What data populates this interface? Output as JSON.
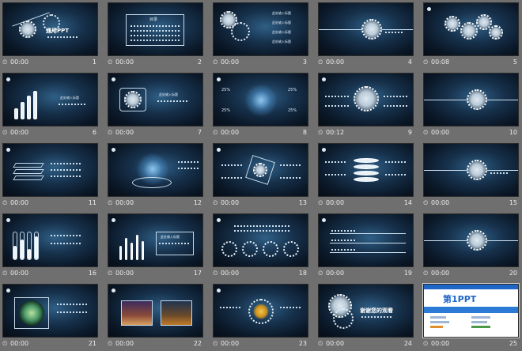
{
  "slides": [
    {
      "number": "1",
      "time": "00:00",
      "title": "通用PPT"
    },
    {
      "number": "2",
      "time": "00:00",
      "title": "目录"
    },
    {
      "number": "3",
      "time": "00:00",
      "items": [
        "此处输入标题",
        "此处输入标题",
        "此处输入标题",
        "此处输入标题"
      ]
    },
    {
      "number": "4",
      "time": "00:00"
    },
    {
      "number": "5",
      "time": "00:08"
    },
    {
      "number": "6",
      "time": "00:00",
      "heading": "此处输入标题"
    },
    {
      "number": "7",
      "time": "00:00",
      "heading": "此处输入标题"
    },
    {
      "number": "8",
      "time": "00:00",
      "percent": "25%"
    },
    {
      "number": "9",
      "time": "00:12"
    },
    {
      "number": "10",
      "time": "00:00"
    },
    {
      "number": "11",
      "time": "00:00"
    },
    {
      "number": "12",
      "time": "00:00"
    },
    {
      "number": "13",
      "time": "00:00"
    },
    {
      "number": "14",
      "time": "00:00"
    },
    {
      "number": "15",
      "time": "00:00"
    },
    {
      "number": "16",
      "time": "00:00"
    },
    {
      "number": "17",
      "time": "00:00",
      "heading": "此处输入标题"
    },
    {
      "number": "18",
      "time": "00:00"
    },
    {
      "number": "19",
      "time": "00:00"
    },
    {
      "number": "20",
      "time": "00:00"
    },
    {
      "number": "21",
      "time": "00:00"
    },
    {
      "number": "22",
      "time": "00:00"
    },
    {
      "number": "23",
      "time": "00:00"
    },
    {
      "number": "24",
      "time": "00:00",
      "title": "谢谢您的观看"
    },
    {
      "number": "25",
      "time": "00:00",
      "brand": "第1PPT"
    }
  ]
}
